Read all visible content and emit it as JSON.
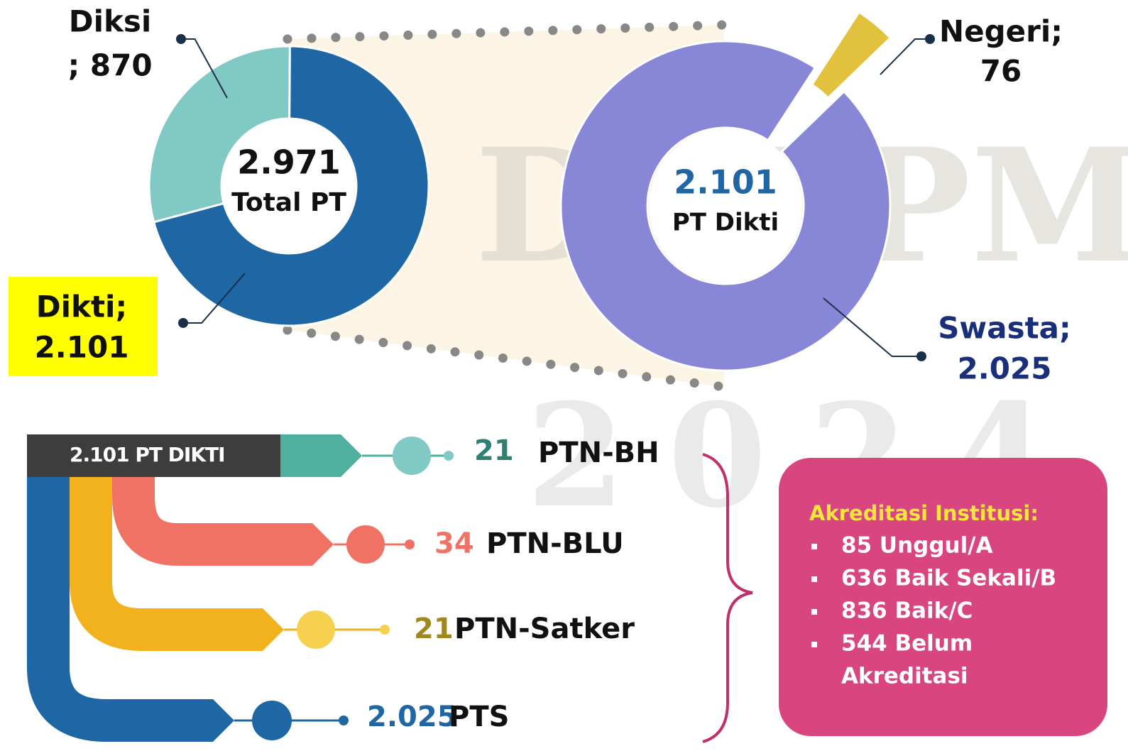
{
  "chart_data": [
    {
      "type": "pie",
      "center_value": "2.971",
      "center_label": "Total PT",
      "categories": [
        "Diksi",
        "Dikti;"
      ],
      "values": [
        870,
        2101
      ],
      "value_labels": [
        "; 870",
        "2.101"
      ],
      "colors": [
        "#80c9c4",
        "#1e67a4"
      ]
    },
    {
      "type": "pie",
      "center_value": "2.101",
      "center_label": "PT Dikti",
      "categories": [
        "Negeri;",
        "Swasta;"
      ],
      "values": [
        76,
        2025
      ],
      "value_labels": [
        "76",
        "2.025"
      ],
      "colors": [
        "#e2c23c",
        "#8886d6"
      ]
    }
  ],
  "watermark": [
    "DRTPM",
    "2024"
  ],
  "diagram": {
    "header": "2.101 PT DIKTI",
    "items": [
      {
        "count": "21",
        "label": "PTN-BH"
      },
      {
        "count": "34",
        "label": "PTN-BLU"
      },
      {
        "count": "21",
        "label": "PTN-Satker"
      },
      {
        "count": "2.025",
        "label": "PTS"
      }
    ],
    "box": {
      "title": "Akreditasi Institusi:",
      "list": [
        "85 Unggul/A",
        "636 Baik Sekali/B",
        "836 Baik/C",
        "544 Belum",
        "Akreditasi"
      ]
    }
  }
}
